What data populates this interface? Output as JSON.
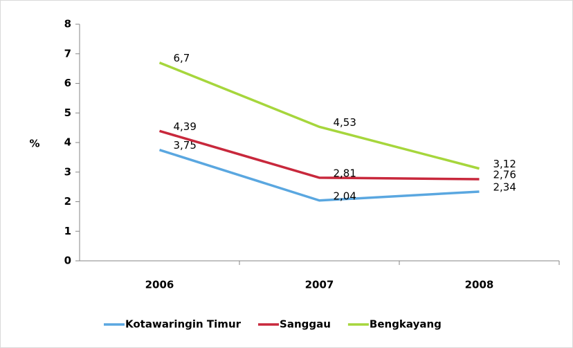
{
  "chart_data": {
    "type": "line",
    "y_label": "%",
    "categories": [
      "2006",
      "2007",
      "2008"
    ],
    "series": [
      {
        "name": "Kotawaringin Timur",
        "color": "#5aa7e0",
        "values": [
          3.75,
          2.04,
          2.34
        ],
        "value_labels": [
          "3,75",
          "2,04",
          "2,34"
        ]
      },
      {
        "name": "Sanggau",
        "color": "#c8283c",
        "values": [
          4.39,
          2.81,
          2.76
        ],
        "value_labels": [
          "4,39",
          "2,81",
          "2,76"
        ]
      },
      {
        "name": "Bengkayang",
        "color": "#a6d63c",
        "values": [
          6.7,
          4.53,
          3.12
        ],
        "value_labels": [
          "6,7",
          "4,53",
          "3,12"
        ]
      }
    ],
    "ylim": [
      0,
      8
    ],
    "yticks": [
      0,
      1,
      2,
      3,
      4,
      5,
      6,
      7,
      8
    ],
    "grid": false,
    "legend": "bottom"
  }
}
